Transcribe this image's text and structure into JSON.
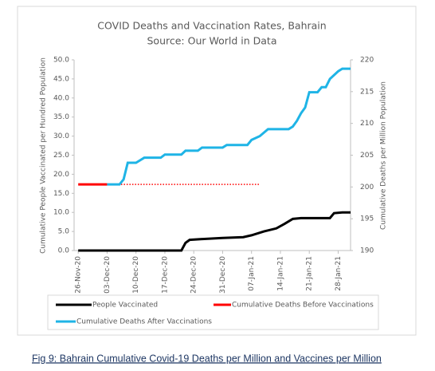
{
  "chart_data": {
    "type": "line",
    "title": "COVID Deaths and Vaccination Rates, Bahrain",
    "subtitle": "Source: Our World in Data",
    "ylabel": "Cumulative People Vaccinated per Hundred Population",
    "y2label": "Cumulative Deaths per Million Population",
    "xlim": [
      "25-Nov-20",
      "31-Jan-21"
    ],
    "xticks": [
      "26-Nov-20",
      "03-Dec-20",
      "10-Dec-20",
      "17-Dec-20",
      "24-Dec-20",
      "31-Dec-20",
      "07-Jan-21",
      "14-Jan-21",
      "21-Jan-21",
      "28-Jan-21"
    ],
    "ylim": [
      0,
      50
    ],
    "yticks": [
      {
        "value": 0,
        "label": "0.0"
      },
      {
        "value": 5,
        "label": "5.0"
      },
      {
        "value": 10,
        "label": "10.0"
      },
      {
        "value": 15,
        "label": "15.0"
      },
      {
        "value": 20,
        "label": "20.0"
      },
      {
        "value": 25,
        "label": "25.0"
      },
      {
        "value": 30,
        "label": "30.0"
      },
      {
        "value": 35,
        "label": "35.0"
      },
      {
        "value": 40,
        "label": "40.0"
      },
      {
        "value": 45,
        "label": "45.0"
      },
      {
        "value": 50,
        "label": "50.0"
      }
    ],
    "y2lim": [
      190,
      220
    ],
    "y2ticks": [
      190,
      195,
      200,
      205,
      210,
      215,
      220
    ],
    "series": [
      {
        "name": "People Vaccinated",
        "color": "#000000",
        "axis": "y",
        "x": [
          "26-Nov-20",
          "21-Dec-20",
          "22-Dec-20",
          "23-Dec-20",
          "26-Dec-20",
          "31-Dec-20",
          "05-Jan-21",
          "07-Jan-21",
          "10-Jan-21",
          "13-Jan-21",
          "15-Jan-21",
          "17-Jan-21",
          "19-Jan-21",
          "26-Jan-21",
          "27-Jan-21",
          "29-Jan-21",
          "31-Jan-21"
        ],
        "values": [
          0,
          0,
          2,
          2.8,
          3,
          3.3,
          3.5,
          4,
          5,
          5.8,
          7,
          8.3,
          8.5,
          8.5,
          9.8,
          10,
          10
        ]
      },
      {
        "name": "Cumulative Deaths Before Vaccinations",
        "color": "#ff0000",
        "axis": "y2",
        "x": [
          "26-Nov-20",
          "03-Dec-20"
        ],
        "values": [
          200.4,
          200.4
        ],
        "extension": {
          "x": [
            "03-Dec-20",
            "09-Jan-21"
          ],
          "value": 200.4
        }
      },
      {
        "name": "Cumulative Deaths After Vaccinations",
        "color": "#1fb4e6",
        "axis": "y2",
        "x": [
          "03-Dec-20",
          "06-Dec-20",
          "07-Dec-20",
          "08-Dec-20",
          "10-Dec-20",
          "11-Dec-20",
          "12-Dec-20",
          "16-Dec-20",
          "17-Dec-20",
          "21-Dec-20",
          "22-Dec-20",
          "25-Dec-20",
          "26-Dec-20",
          "31-Dec-20",
          "01-Jan-21",
          "06-Jan-21",
          "07-Jan-21",
          "09-Jan-21",
          "11-Jan-21",
          "16-Jan-21",
          "17-Jan-21",
          "18-Jan-21",
          "19-Jan-21",
          "20-Jan-21",
          "21-Jan-21",
          "23-Jan-21",
          "24-Jan-21",
          "25-Jan-21",
          "26-Jan-21",
          "28-Jan-21",
          "29-Jan-21",
          "31-Jan-21"
        ],
        "values": [
          200.4,
          200.4,
          201.2,
          203.8,
          203.8,
          204.2,
          204.6,
          204.6,
          205.1,
          205.1,
          205.7,
          205.7,
          206.2,
          206.2,
          206.6,
          206.6,
          207.4,
          208,
          209.1,
          209.1,
          209.5,
          210.4,
          211.6,
          212.5,
          214.9,
          214.9,
          215.7,
          215.7,
          217,
          218.2,
          218.6,
          218.6
        ]
      }
    ],
    "caption": "Fig 9: Bahrain Cumulative Covid-19 Deaths per Million and Vaccines per Million"
  }
}
